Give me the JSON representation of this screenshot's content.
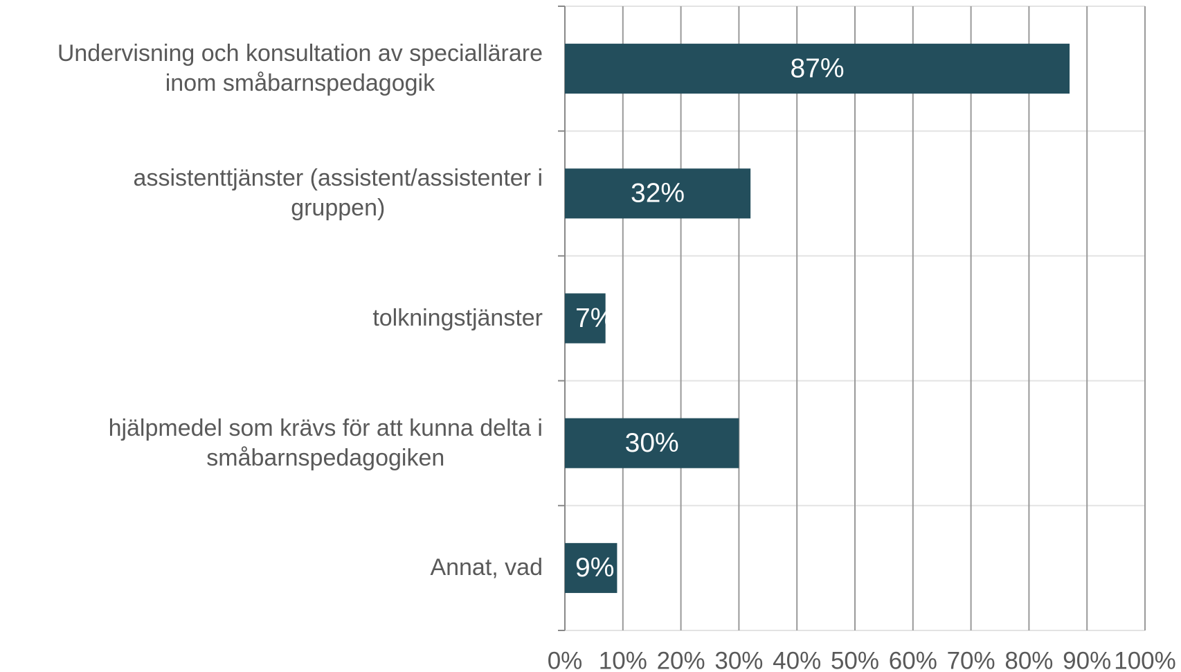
{
  "chart_data": {
    "type": "bar",
    "orientation": "horizontal",
    "categories": [
      "Undervisning och konsultation av speciallärare\ninom småbarnspedagogik",
      "assistenttjänster (assistent/assistenter i\ngruppen)",
      "tolkningstjänster",
      "hjälpmedel som krävs för att kunna delta i\nsmåbarnspedagogiken",
      "Annat, vad"
    ],
    "values": [
      87,
      32,
      7,
      30,
      9
    ],
    "value_labels": [
      "87%",
      "32%",
      "7%",
      "30%",
      "9%"
    ],
    "color": "#234e5c",
    "xlim": [
      0,
      100
    ],
    "xticks": [
      {
        "value": 0,
        "label": "0%"
      },
      {
        "value": 10,
        "label": "10%"
      },
      {
        "value": 20,
        "label": "20%"
      },
      {
        "value": 30,
        "label": "30%"
      },
      {
        "value": 40,
        "label": "40%"
      },
      {
        "value": 50,
        "label": "50%"
      },
      {
        "value": 60,
        "label": "60%"
      },
      {
        "value": 70,
        "label": "70%"
      },
      {
        "value": 80,
        "label": "80%"
      },
      {
        "value": 90,
        "label": "90%"
      },
      {
        "value": 100,
        "label": "100%"
      }
    ],
    "grid": true
  }
}
